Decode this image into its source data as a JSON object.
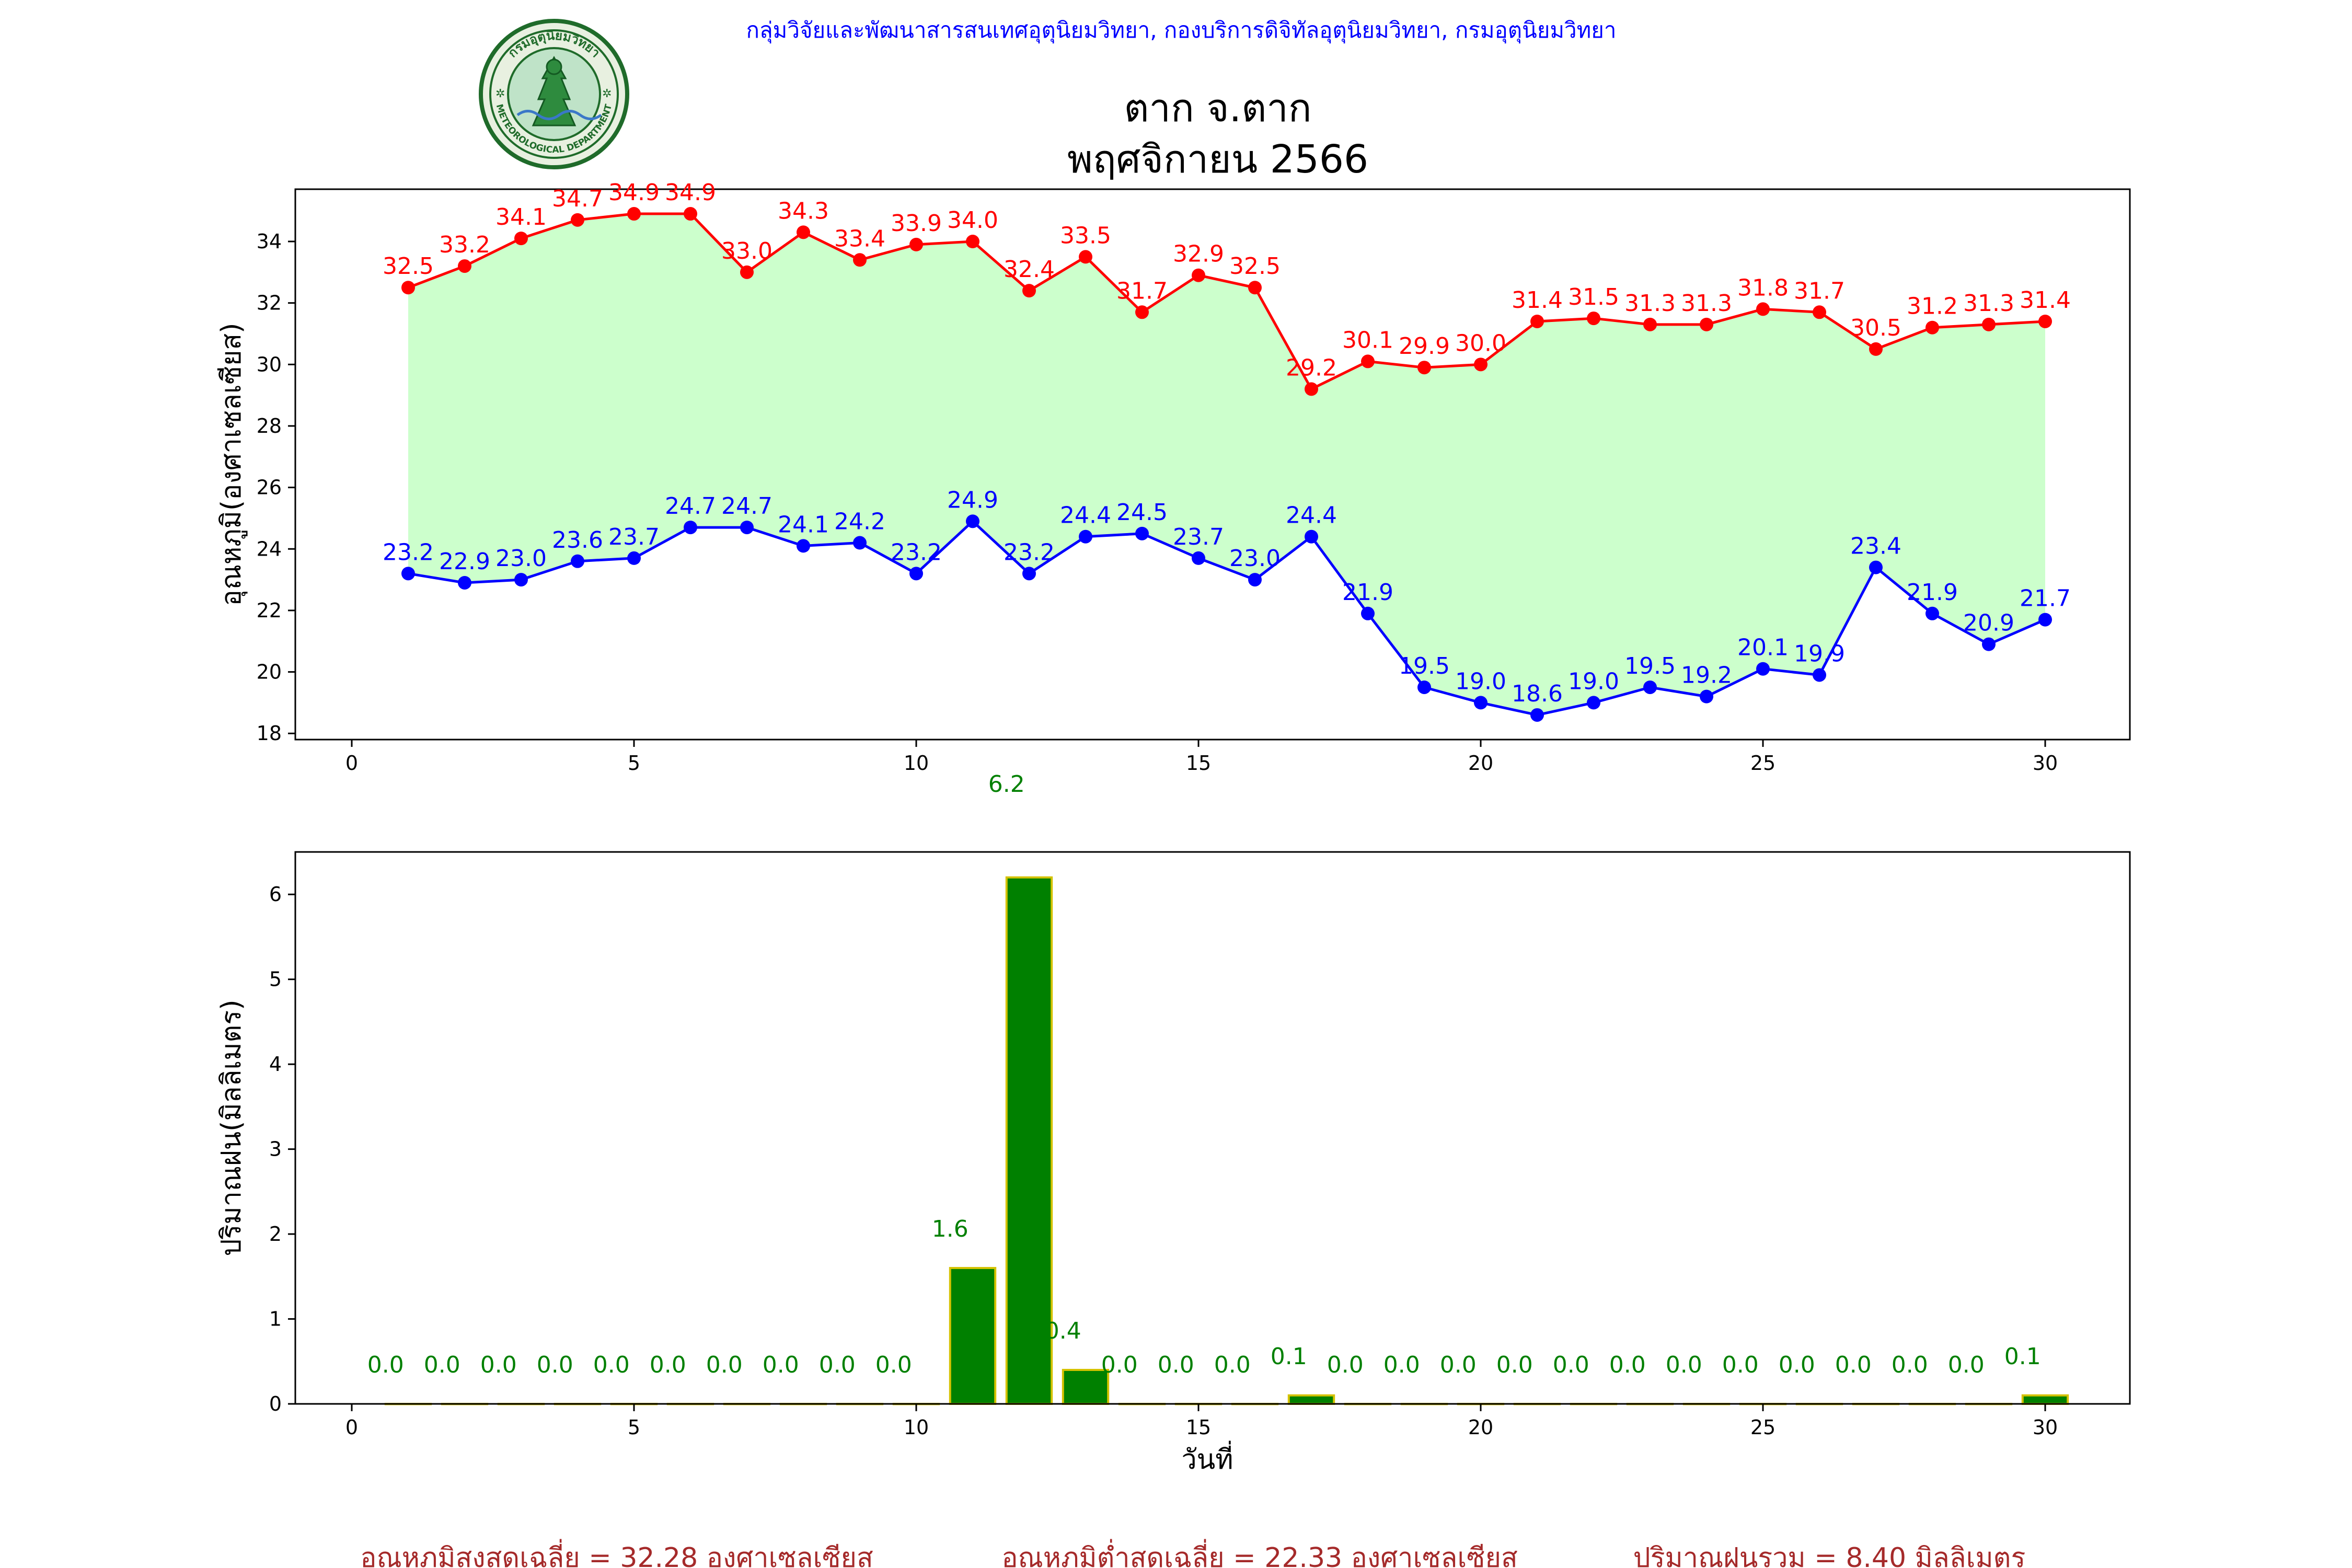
{
  "header": {
    "agency_line": "กลุ่มวิจัยและพัฒนาสารสนเทศอุตุนิยมวิทยา, กองบริการดิจิทัลอุตุนิยมวิทยา, กรมอุตุนิยมวิทยา",
    "title_line1": "ตาก จ.ตาก",
    "title_line2": "พฤศจิกายน 2566",
    "logo_text_top": "กรมอุตุนิยมวิทยา",
    "logo_text_bottom": "METEOROLOGICAL DEPARTMENT"
  },
  "footer": {
    "avg_max": "อุณหภูมิสูงสุดเฉลี่ย = 32.28 องศาเซลเซียส",
    "avg_min": "อุณหภูมิต่ำสุดเฉลี่ย = 22.33 องศาเซลเซียส",
    "total_rain": "ปริมาณฝนรวม = 8.40 มิลลิเมตร"
  },
  "colors": {
    "max_line": "#ff0000",
    "min_line": "#0000ff",
    "fill": "#ccffcc",
    "bar": "#008000",
    "bar_edge": "#d4c200",
    "agency_text": "#0000ff",
    "footer_text": "#a52a2a"
  },
  "chart_data": [
    {
      "type": "line",
      "ylabel": "อุณหภูมิ(องศาเซลเซียส)",
      "xlim": [
        -1,
        31.5
      ],
      "ylim": [
        17.8,
        35.7
      ],
      "xticks": [
        0,
        5,
        10,
        15,
        20,
        25,
        30
      ],
      "yticks": [
        18,
        20,
        22,
        24,
        26,
        28,
        30,
        32,
        34
      ],
      "x": [
        1,
        2,
        3,
        4,
        5,
        6,
        7,
        8,
        9,
        10,
        11,
        12,
        13,
        14,
        15,
        16,
        17,
        18,
        19,
        20,
        21,
        22,
        23,
        24,
        25,
        26,
        27,
        28,
        29,
        30
      ],
      "series": [
        {
          "key": "max",
          "values": [
            32.5,
            33.2,
            34.1,
            34.7,
            34.9,
            34.9,
            33.0,
            34.3,
            33.4,
            33.9,
            34.0,
            32.4,
            33.5,
            31.7,
            32.9,
            32.5,
            29.2,
            30.1,
            29.9,
            30.0,
            31.4,
            31.5,
            31.3,
            31.3,
            31.8,
            31.7,
            30.5,
            31.2,
            31.3,
            31.4
          ]
        },
        {
          "key": "min",
          "values": [
            23.2,
            22.9,
            23.0,
            23.6,
            23.7,
            24.7,
            24.7,
            24.1,
            24.2,
            23.2,
            24.9,
            23.2,
            24.4,
            24.5,
            23.7,
            23.0,
            24.4,
            21.9,
            19.5,
            19.0,
            18.6,
            19.0,
            19.5,
            19.2,
            20.1,
            19.9,
            23.4,
            21.9,
            20.9,
            21.7
          ]
        }
      ]
    },
    {
      "type": "bar",
      "xlabel": "วันที่",
      "ylabel": "ปริมาณฝน(มิลลิเมตร)",
      "xlim": [
        -1,
        31.5
      ],
      "ylim": [
        0,
        6.5
      ],
      "xticks": [
        0,
        5,
        10,
        15,
        20,
        25,
        30
      ],
      "yticks": [
        0,
        1,
        2,
        3,
        4,
        5,
        6
      ],
      "x": [
        1,
        2,
        3,
        4,
        5,
        6,
        7,
        8,
        9,
        10,
        11,
        12,
        13,
        14,
        15,
        16,
        17,
        18,
        19,
        20,
        21,
        22,
        23,
        24,
        25,
        26,
        27,
        28,
        29,
        30
      ],
      "values": [
        0.0,
        0.0,
        0.0,
        0.0,
        0.0,
        0.0,
        0.0,
        0.0,
        0.0,
        0.0,
        1.6,
        6.2,
        0.4,
        0.0,
        0.0,
        0.0,
        0.1,
        0.0,
        0.0,
        0.0,
        0.0,
        0.0,
        0.0,
        0.0,
        0.0,
        0.0,
        0.0,
        0.0,
        0.0,
        0.1
      ]
    }
  ]
}
